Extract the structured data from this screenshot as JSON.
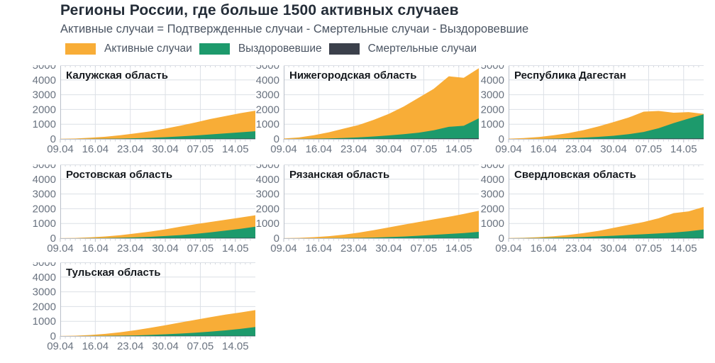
{
  "header": {
    "title": "Регионы России, где больше 1500 активных случаев",
    "subtitle": "Активные случаи = Подтвержденные случаи - Смертельные случаи - Выздоровевшие"
  },
  "legend": {
    "items": [
      {
        "label": "Активные случаи",
        "color": "#F8AD37"
      },
      {
        "label": "Выздоровевшие",
        "color": "#1D9A6C"
      },
      {
        "label": "Смертельные случаи",
        "color": "#3B404B"
      }
    ]
  },
  "colors": {
    "active": "#F8AD37",
    "recovered": "#1D9A6C",
    "deaths": "#3B404B",
    "grid": "#DCE0E6",
    "axis": "#B9BFC9",
    "minor_tick": "#C9CED6",
    "tick_text": "#6A7380",
    "region_title": "#14181d"
  },
  "axes": {
    "ylim": [
      0,
      5000
    ],
    "y_ticks": [
      0,
      1000,
      2000,
      3000,
      4000,
      5000
    ],
    "x_tick_labels": [
      "09.04",
      "16.04",
      "23.04",
      "30.04",
      "07.05",
      "14.05"
    ],
    "x_tick_days": [
      0,
      7,
      14,
      21,
      28,
      35
    ],
    "x_range_days": [
      0,
      39
    ],
    "sample_days": [
      0,
      3,
      6,
      9,
      12,
      15,
      18,
      21,
      24,
      27,
      30,
      33,
      36,
      39
    ],
    "sample_dates": [
      "09.04",
      "12.04",
      "15.04",
      "18.04",
      "21.04",
      "24.04",
      "27.04",
      "30.04",
      "03.05",
      "06.05",
      "09.05",
      "12.05",
      "15.05",
      "18.05"
    ],
    "grid": true
  },
  "chart_data": [
    {
      "type": "area",
      "stacked": true,
      "title": "Калужская область",
      "note": "stack bottom-to-top: deaths, recovered, active; top envelope = confirmed",
      "confirmed": [
        10,
        30,
        80,
        150,
        250,
        380,
        520,
        700,
        900,
        1120,
        1350,
        1550,
        1750,
        1920
      ],
      "series": [
        {
          "name": "Смертельные случаи",
          "values": [
            0,
            1,
            2,
            3,
            5,
            7,
            9,
            11,
            13,
            15,
            18,
            20,
            22,
            25
          ]
        },
        {
          "name": "Выздоровевшие",
          "values": [
            0,
            0,
            5,
            10,
            20,
            40,
            70,
            110,
            160,
            220,
            290,
            360,
            430,
            500
          ]
        },
        {
          "name": "Активные случаи",
          "values": [
            10,
            29,
            73,
            137,
            225,
            333,
            441,
            579,
            727,
            885,
            1042,
            1170,
            1298,
            1395
          ]
        }
      ]
    },
    {
      "type": "area",
      "stacked": true,
      "title": "Нижегородская область",
      "confirmed": [
        30,
        100,
        250,
        450,
        700,
        950,
        1300,
        1700,
        2200,
        2800,
        3400,
        4250,
        4150,
        4800
      ],
      "series": [
        {
          "name": "Смертельные случаи",
          "values": [
            0,
            1,
            3,
            5,
            8,
            12,
            16,
            20,
            25,
            30,
            35,
            40,
            43,
            47
          ]
        },
        {
          "name": "Выздоровевшие",
          "values": [
            0,
            5,
            15,
            30,
            60,
            100,
            150,
            220,
            300,
            400,
            550,
            780,
            850,
            1350
          ]
        },
        {
          "name": "Активные случаи",
          "values": [
            30,
            94,
            232,
            415,
            632,
            838,
            1134,
            1460,
            1875,
            2370,
            2815,
            3430,
            3257,
            3403
          ]
        }
      ]
    },
    {
      "type": "area",
      "stacked": true,
      "title": "Республика Дагестан",
      "confirmed": [
        20,
        60,
        130,
        250,
        400,
        600,
        850,
        1150,
        1450,
        1850,
        1900,
        1780,
        1820,
        1700
      ],
      "series": [
        {
          "name": "Смертельные случаи",
          "values": [
            0,
            1,
            2,
            4,
            6,
            9,
            12,
            16,
            20,
            24,
            27,
            29,
            30,
            32
          ]
        },
        {
          "name": "Выздоровевшие",
          "values": [
            0,
            0,
            5,
            15,
            40,
            80,
            130,
            200,
            300,
            450,
            700,
            1050,
            1350,
            1640
          ]
        },
        {
          "name": "Активные случаи",
          "values": [
            20,
            59,
            123,
            231,
            354,
            511,
            708,
            934,
            1130,
            1376,
            1173,
            701,
            440,
            28
          ]
        }
      ]
    },
    {
      "type": "area",
      "stacked": true,
      "title": "Ростовская область",
      "confirmed": [
        5,
        20,
        60,
        120,
        200,
        320,
        450,
        600,
        780,
        950,
        1100,
        1250,
        1400,
        1560
      ],
      "series": [
        {
          "name": "Смертельные случаи",
          "values": [
            0,
            0,
            1,
            2,
            4,
            6,
            8,
            10,
            12,
            14,
            16,
            18,
            20,
            22
          ]
        },
        {
          "name": "Выздоровевшие",
          "values": [
            0,
            0,
            5,
            10,
            25,
            50,
            90,
            140,
            200,
            280,
            380,
            500,
            620,
            760
          ]
        },
        {
          "name": "Активные случаи",
          "values": [
            5,
            20,
            54,
            108,
            171,
            264,
            352,
            450,
            568,
            656,
            704,
            732,
            760,
            778
          ]
        }
      ]
    },
    {
      "type": "area",
      "stacked": true,
      "title": "Рязанская область",
      "confirmed": [
        5,
        25,
        70,
        140,
        240,
        380,
        550,
        730,
        920,
        1100,
        1280,
        1450,
        1650,
        1860
      ],
      "series": [
        {
          "name": "Смертельные случаи",
          "values": [
            0,
            0,
            1,
            1,
            2,
            3,
            4,
            5,
            6,
            8,
            9,
            10,
            11,
            12
          ]
        },
        {
          "name": "Выздоровевшие",
          "values": [
            0,
            0,
            0,
            5,
            10,
            20,
            40,
            70,
            110,
            160,
            220,
            280,
            340,
            420
          ]
        },
        {
          "name": "Активные случаи",
          "values": [
            5,
            25,
            69,
            134,
            228,
            357,
            506,
            655,
            804,
            932,
            1051,
            1160,
            1299,
            1428
          ]
        }
      ]
    },
    {
      "type": "area",
      "stacked": true,
      "title": "Свердловская область",
      "confirmed": [
        10,
        30,
        70,
        130,
        220,
        350,
        500,
        700,
        900,
        1100,
        1350,
        1700,
        1820,
        2120
      ],
      "series": [
        {
          "name": "Смертельные случаи",
          "values": [
            0,
            0,
            1,
            2,
            3,
            4,
            6,
            8,
            9,
            11,
            12,
            13,
            14,
            15
          ]
        },
        {
          "name": "Выздоровевшие",
          "values": [
            0,
            5,
            15,
            30,
            50,
            80,
            120,
            160,
            210,
            260,
            310,
            370,
            450,
            570
          ]
        },
        {
          "name": "Активные случаи",
          "values": [
            10,
            25,
            54,
            98,
            167,
            266,
            374,
            532,
            681,
            829,
            1028,
            1317,
            1356,
            1535
          ]
        }
      ]
    },
    {
      "type": "area",
      "stacked": true,
      "title": "Тульская область",
      "confirmed": [
        5,
        25,
        70,
        150,
        260,
        400,
        560,
        730,
        920,
        1100,
        1280,
        1450,
        1600,
        1760
      ],
      "series": [
        {
          "name": "Смертельные случаи",
          "values": [
            0,
            0,
            1,
            2,
            3,
            5,
            7,
            9,
            10,
            12,
            13,
            14,
            15,
            16
          ]
        },
        {
          "name": "Выздоровевшие",
          "values": [
            0,
            0,
            5,
            10,
            20,
            40,
            70,
            110,
            160,
            220,
            290,
            370,
            470,
            600
          ]
        },
        {
          "name": "Активные случаи",
          "values": [
            5,
            25,
            64,
            138,
            237,
            355,
            483,
            611,
            750,
            868,
            977,
            1066,
            1115,
            1144
          ]
        }
      ]
    }
  ]
}
